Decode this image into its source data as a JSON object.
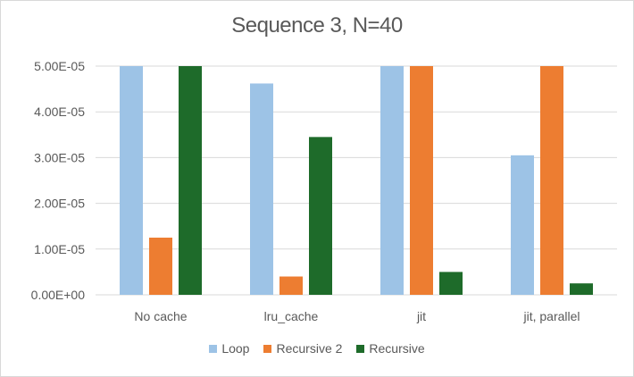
{
  "chart_data": {
    "type": "bar",
    "title": "Sequence 3, N=40",
    "categories": [
      "No cache",
      "lru_cache",
      "jit",
      "jit, parallel"
    ],
    "ylim": [
      0,
      5e-05
    ],
    "yticks": [
      0,
      1e-05,
      2e-05,
      3e-05,
      4e-05,
      5e-05
    ],
    "ytick_labels": [
      "0.00E+00",
      "1.00E-05",
      "2.00E-05",
      "3.00E-05",
      "4.00E-05",
      "5.00E-05"
    ],
    "grid": true,
    "legend_position": "bottom",
    "series": [
      {
        "name": "Loop",
        "color": "#9dc3e6",
        "values": [
          5e-05,
          4.62e-05,
          5e-05,
          3.05e-05
        ]
      },
      {
        "name": "Recursive 2",
        "color": "#ed7d31",
        "values": [
          1.25e-05,
          4e-06,
          5e-05,
          5e-05
        ]
      },
      {
        "name": "Recursive",
        "color": "#1e6b2a",
        "values": [
          5e-05,
          3.45e-05,
          5e-06,
          2.5e-06
        ]
      }
    ]
  }
}
